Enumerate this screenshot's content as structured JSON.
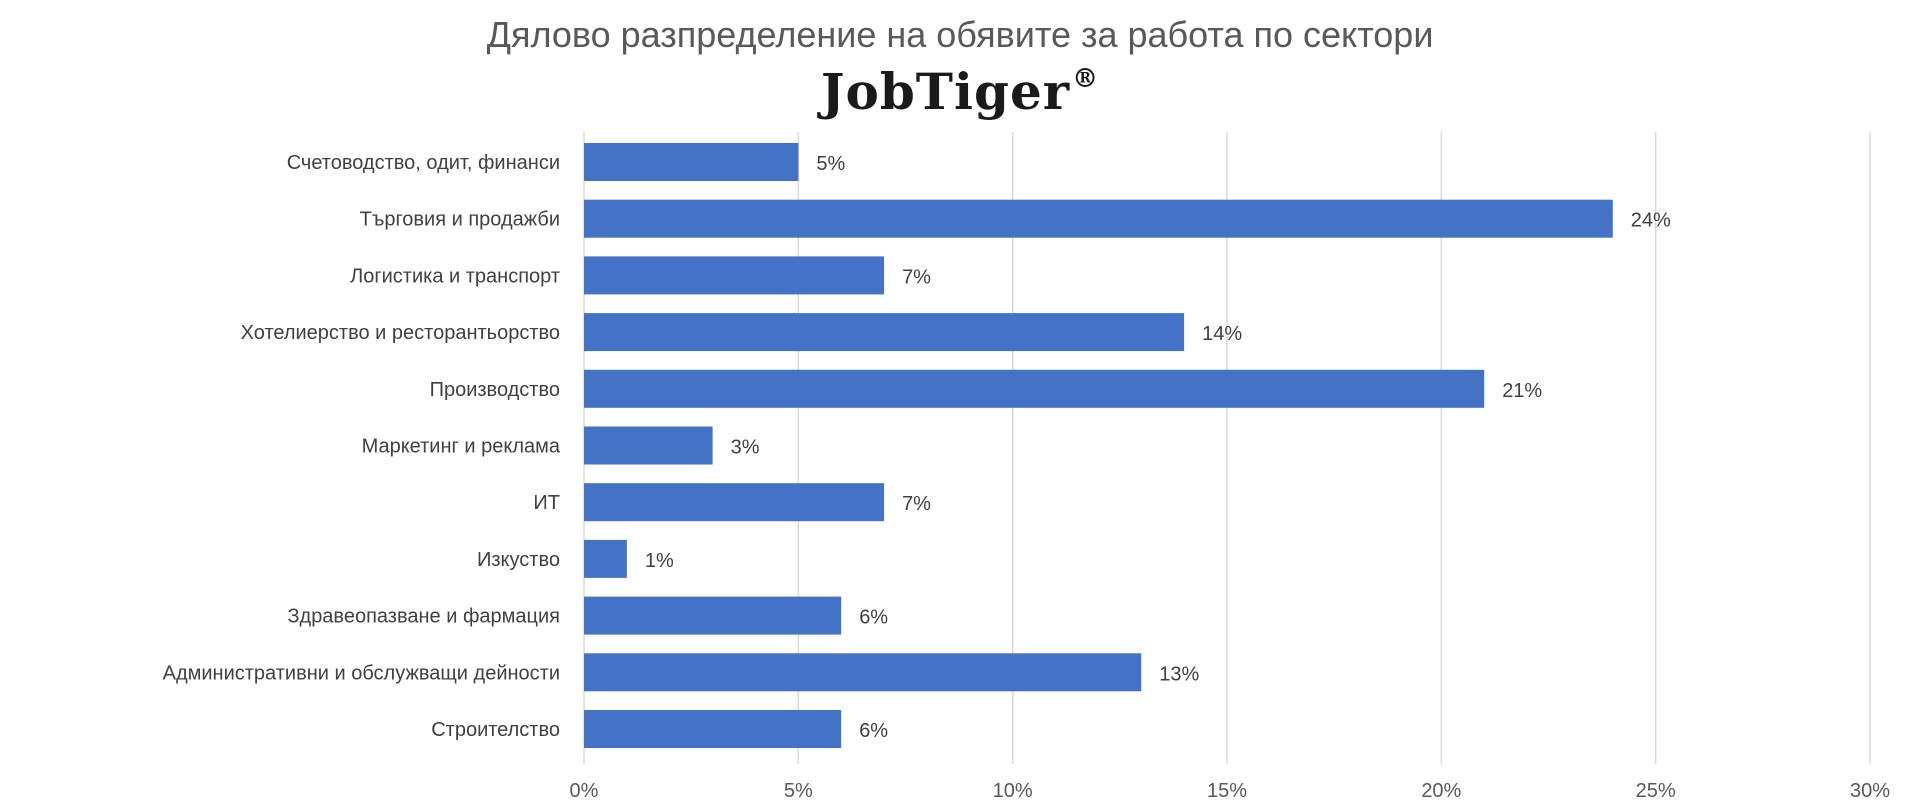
{
  "title": "Дялово разпределение на обявите за работа по сектори",
  "logo": {
    "text": "JobTiger",
    "mark": "®"
  },
  "colors": {
    "bar": "#4472C4",
    "grid": "#D9D9D9",
    "text": "#404040"
  },
  "chart_data": {
    "type": "bar",
    "orientation": "horizontal",
    "title": "Дялово разпределение на обявите за работа по сектори",
    "categories": [
      "Счетоводство, одит, финанси",
      "Търговия и продажби",
      "Логистика и транспорт",
      "Хотелиерство и ресторантьорство",
      "Производство",
      "Маркетинг и реклама",
      "ИТ",
      "Изкуство",
      "Здравеопазване и фармация",
      "Административни и обслужващи дейности",
      "Строителство"
    ],
    "values": [
      5,
      24,
      7,
      14,
      21,
      3,
      7,
      1,
      6,
      13,
      6
    ],
    "data_labels": [
      "5%",
      "24%",
      "7%",
      "14%",
      "21%",
      "3%",
      "7%",
      "1%",
      "6%",
      "13%",
      "6%"
    ],
    "xlim": [
      0,
      30
    ],
    "xticks": [
      0,
      5,
      10,
      15,
      20,
      25,
      30
    ],
    "xtick_labels": [
      "0%",
      "5%",
      "10%",
      "15%",
      "20%",
      "25%",
      "30%"
    ],
    "xlabel": "",
    "ylabel": "",
    "grid": true,
    "legend": "none"
  }
}
